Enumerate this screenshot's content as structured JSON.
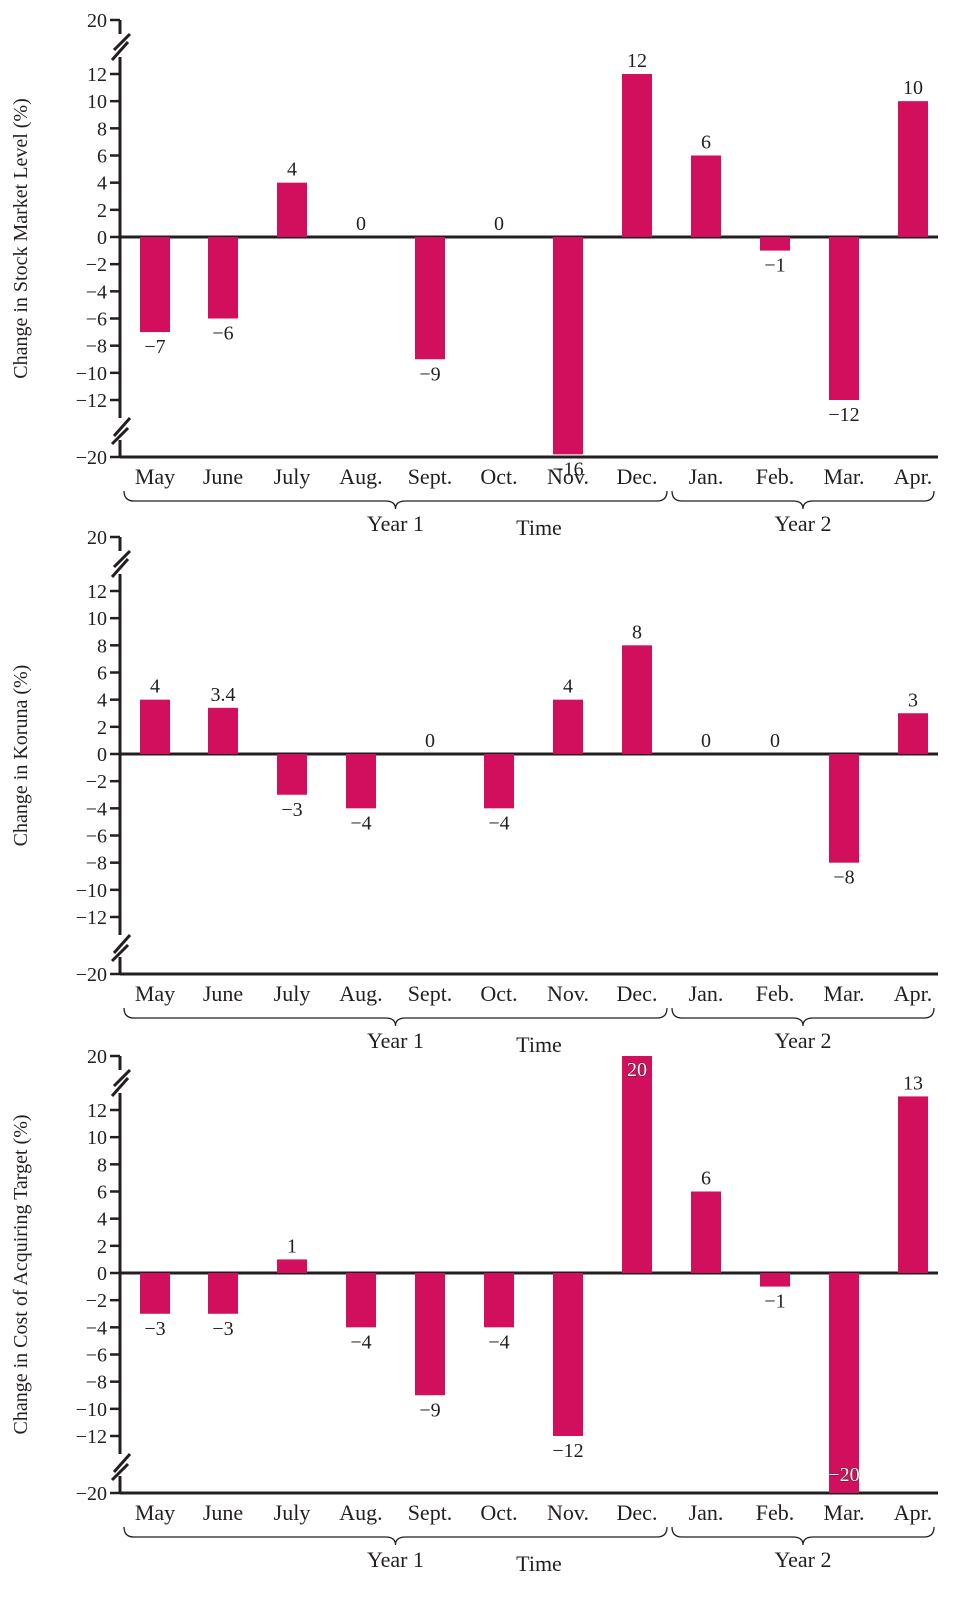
{
  "colors": {
    "bar": "#d10f5c",
    "axis": "#231f20",
    "text": "#231f20"
  },
  "x_groups": [
    {
      "label": "Year 1",
      "from": 0,
      "to": 7
    },
    {
      "label": "Year 2",
      "from": 8,
      "to": 11
    }
  ],
  "x_axis_title": "Time",
  "chart_data": [
    {
      "type": "bar",
      "ylabel": "Change in Stock Market Level (%)",
      "xlabel": "Time",
      "categories": [
        "May",
        "June",
        "July",
        "Aug.",
        "Sept.",
        "Oct.",
        "Nov.",
        "Dec.",
        "Jan.",
        "Feb.",
        "Mar.",
        "Apr."
      ],
      "values": [
        -7,
        -6,
        4,
        0,
        -9,
        0,
        -16,
        12,
        6,
        -1,
        -12,
        10
      ],
      "data_labels": [
        "−7",
        "−6",
        "4",
        "0",
        "−9",
        "0",
        "−16",
        "12",
        "6",
        "−1",
        "−12",
        "10"
      ],
      "yticks": [
        20,
        12,
        10,
        8,
        6,
        4,
        2,
        0,
        -2,
        -4,
        -6,
        -8,
        -10,
        -12,
        -20
      ],
      "ytick_labels": [
        "20",
        "12",
        "10",
        "8",
        "6",
        "4",
        "2",
        "0",
        "−2",
        "−4",
        "−6",
        "−8",
        "−10",
        "−12",
        "−20"
      ],
      "axis_break": true,
      "ylim": [
        -20,
        20
      ]
    },
    {
      "type": "bar",
      "ylabel": "Change in Koruna (%)",
      "xlabel": "Time",
      "categories": [
        "May",
        "June",
        "July",
        "Aug.",
        "Sept.",
        "Oct.",
        "Nov.",
        "Dec.",
        "Jan.",
        "Feb.",
        "Mar.",
        "Apr."
      ],
      "values": [
        4,
        3.4,
        -3,
        -4,
        0,
        -4,
        4,
        8,
        0,
        0,
        -8,
        3
      ],
      "data_labels": [
        "4",
        "3.4",
        "−3",
        "−4",
        "0",
        "−4",
        "4",
        "8",
        "0",
        "0",
        "−8",
        "3"
      ],
      "yticks": [
        20,
        12,
        10,
        8,
        6,
        4,
        2,
        0,
        -2,
        -4,
        -6,
        -8,
        -10,
        -12,
        -20
      ],
      "ytick_labels": [
        "20",
        "12",
        "10",
        "8",
        "6",
        "4",
        "2",
        "0",
        "−2",
        "−4",
        "−6",
        "−8",
        "−10",
        "−12",
        "−20"
      ],
      "axis_break": true,
      "ylim": [
        -20,
        20
      ]
    },
    {
      "type": "bar",
      "ylabel": "Change in Cost of Acquiring Target (%)",
      "xlabel": "Time",
      "categories": [
        "May",
        "June",
        "July",
        "Aug.",
        "Sept.",
        "Oct.",
        "Nov.",
        "Dec.",
        "Jan.",
        "Feb.",
        "Mar.",
        "Apr."
      ],
      "values": [
        -3,
        -3,
        1,
        -4,
        -9,
        -4,
        -12,
        20,
        6,
        -1,
        -20,
        13
      ],
      "data_labels": [
        "−3",
        "−3",
        "1",
        "−4",
        "−9",
        "−4",
        "−12",
        "20",
        "6",
        "−1",
        "−20",
        "13"
      ],
      "yticks": [
        20,
        12,
        10,
        8,
        6,
        4,
        2,
        0,
        -2,
        -4,
        -6,
        -8,
        -10,
        -12,
        -20
      ],
      "ytick_labels": [
        "20",
        "12",
        "10",
        "8",
        "6",
        "4",
        "2",
        "0",
        "−2",
        "−4",
        "−6",
        "−8",
        "−10",
        "−12",
        "−20"
      ],
      "axis_break": true,
      "ylim": [
        -20,
        20
      ]
    }
  ]
}
